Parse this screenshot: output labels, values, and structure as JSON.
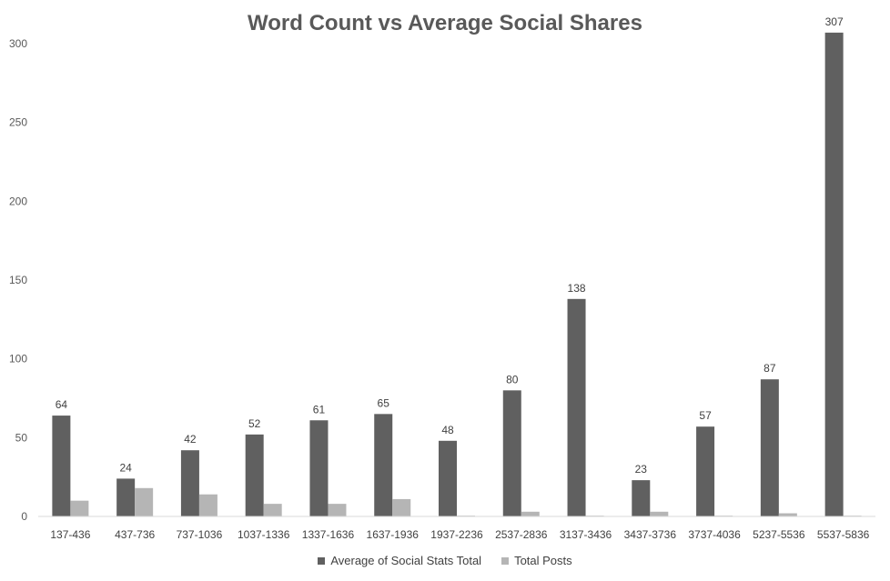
{
  "chart_data": {
    "type": "bar",
    "title": "Word Count vs Average Social Shares",
    "xlabel": "",
    "ylabel": "",
    "ylim": [
      0,
      300
    ],
    "yticks": [
      0,
      50,
      100,
      150,
      200,
      250,
      300
    ],
    "grid": false,
    "legend_position": "bottom",
    "categories": [
      "137-436",
      "437-736",
      "737-1036",
      "1037-1336",
      "1337-1636",
      "1637-1936",
      "1937-2236",
      "2537-2836",
      "3137-3436",
      "3437-3736",
      "3737-4036",
      "5237-5536",
      "5537-5836"
    ],
    "series": [
      {
        "name": "Average of Social Stats Total",
        "color": "#606060",
        "values": [
          64,
          24,
          42,
          52,
          61,
          65,
          48,
          80,
          138,
          23,
          57,
          87,
          307
        ],
        "data_labels": true
      },
      {
        "name": "Total Posts",
        "color": "#b5b5b5",
        "values": [
          10,
          18,
          14,
          8,
          8,
          11,
          0.5,
          3,
          0.5,
          3,
          0.5,
          2,
          0.5
        ],
        "data_labels": false
      }
    ]
  }
}
